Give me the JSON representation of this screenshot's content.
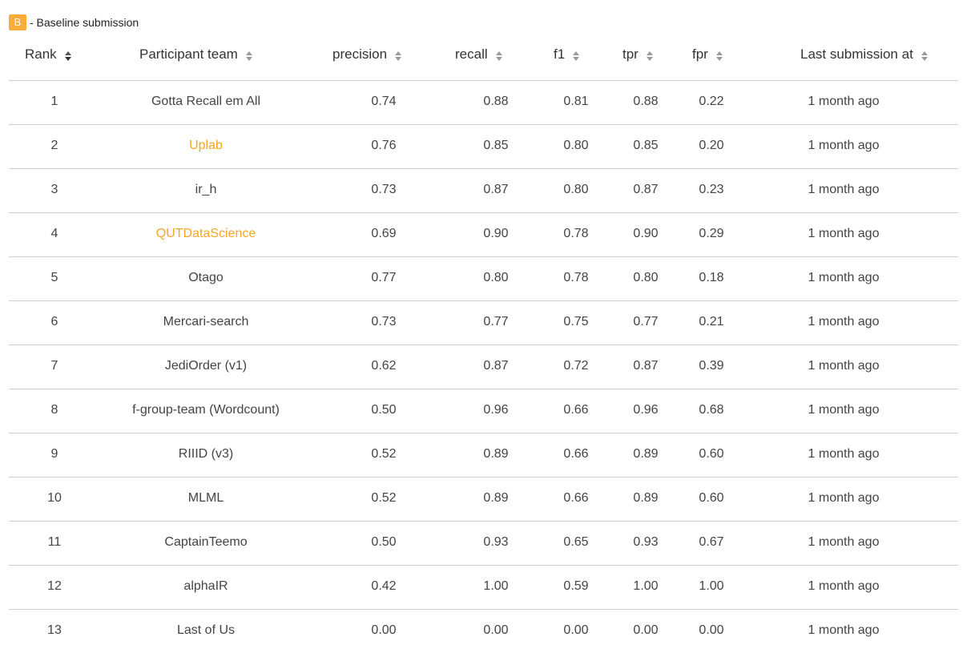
{
  "legend": {
    "badge": "B",
    "label": "- Baseline submission"
  },
  "columns": [
    "Rank",
    "Participant team",
    "precision",
    "recall",
    "f1",
    "tpr",
    "fpr",
    "Last submission at"
  ],
  "colors": {
    "baseline_badge": "#f8ad38",
    "team_link": "#f5a623",
    "divider": "#cfcfcf"
  },
  "rows": [
    {
      "rank": "1",
      "team": "Gotta Recall em All",
      "link": false,
      "precision": "0.74",
      "recall": "0.88",
      "f1": "0.81",
      "tpr": "0.88",
      "fpr": "0.22",
      "last": "1 month ago"
    },
    {
      "rank": "2",
      "team": "Uplab",
      "link": true,
      "precision": "0.76",
      "recall": "0.85",
      "f1": "0.80",
      "tpr": "0.85",
      "fpr": "0.20",
      "last": "1 month ago"
    },
    {
      "rank": "3",
      "team": "ir_h",
      "link": false,
      "precision": "0.73",
      "recall": "0.87",
      "f1": "0.80",
      "tpr": "0.87",
      "fpr": "0.23",
      "last": "1 month ago"
    },
    {
      "rank": "4",
      "team": "QUTDataScience",
      "link": true,
      "precision": "0.69",
      "recall": "0.90",
      "f1": "0.78",
      "tpr": "0.90",
      "fpr": "0.29",
      "last": "1 month ago"
    },
    {
      "rank": "5",
      "team": "Otago",
      "link": false,
      "precision": "0.77",
      "recall": "0.80",
      "f1": "0.78",
      "tpr": "0.80",
      "fpr": "0.18",
      "last": "1 month ago"
    },
    {
      "rank": "6",
      "team": "Mercari-search",
      "link": false,
      "precision": "0.73",
      "recall": "0.77",
      "f1": "0.75",
      "tpr": "0.77",
      "fpr": "0.21",
      "last": "1 month ago"
    },
    {
      "rank": "7",
      "team": "JediOrder (v1)",
      "link": false,
      "precision": "0.62",
      "recall": "0.87",
      "f1": "0.72",
      "tpr": "0.87",
      "fpr": "0.39",
      "last": "1 month ago"
    },
    {
      "rank": "8",
      "team": "f-group-team (Wordcount)",
      "link": false,
      "precision": "0.50",
      "recall": "0.96",
      "f1": "0.66",
      "tpr": "0.96",
      "fpr": "0.68",
      "last": "1 month ago"
    },
    {
      "rank": "9",
      "team": "RIIID (v3)",
      "link": false,
      "precision": "0.52",
      "recall": "0.89",
      "f1": "0.66",
      "tpr": "0.89",
      "fpr": "0.60",
      "last": "1 month ago"
    },
    {
      "rank": "10",
      "team": "MLML",
      "link": false,
      "precision": "0.52",
      "recall": "0.89",
      "f1": "0.66",
      "tpr": "0.89",
      "fpr": "0.60",
      "last": "1 month ago"
    },
    {
      "rank": "11",
      "team": "CaptainTeemo",
      "link": false,
      "precision": "0.50",
      "recall": "0.93",
      "f1": "0.65",
      "tpr": "0.93",
      "fpr": "0.67",
      "last": "1 month ago"
    },
    {
      "rank": "12",
      "team": "alphaIR",
      "link": false,
      "precision": "0.42",
      "recall": "1.00",
      "f1": "0.59",
      "tpr": "1.00",
      "fpr": "1.00",
      "last": "1 month ago"
    },
    {
      "rank": "13",
      "team": "Last of Us",
      "link": false,
      "precision": "0.00",
      "recall": "0.00",
      "f1": "0.00",
      "tpr": "0.00",
      "fpr": "0.00",
      "last": "1 month ago"
    }
  ]
}
